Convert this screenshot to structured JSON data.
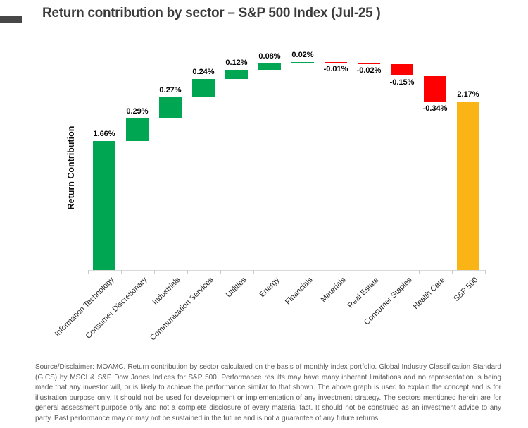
{
  "slide": {
    "title": "Return contribution by sector – S&P 500 Index (Jul-25 )"
  },
  "chart_data": {
    "type": "waterfall",
    "title": "Return contribution by sector – S&P 500 Index (Jul-25 )",
    "ylabel": "Return Contribution",
    "xlabel": "",
    "ylim": [
      0,
      2.9
    ],
    "grid": false,
    "legend": "none",
    "categories": [
      "Information Technology",
      "Consumer Discretionary",
      "Industrials",
      "Communication Services",
      "Utilities",
      "Energy",
      "Financials",
      "Materials",
      "Real Estate",
      "Consumer Staples",
      "Health Care",
      "S&P 500"
    ],
    "values": [
      1.66,
      0.29,
      0.27,
      0.24,
      0.12,
      0.08,
      0.02,
      -0.01,
      -0.02,
      -0.15,
      -0.34,
      2.17
    ],
    "value_labels": [
      "1.66%",
      "0.29%",
      "0.27%",
      "0.24%",
      "0.12%",
      "0.08%",
      "0.02%",
      "-0.01%",
      "-0.02%",
      "-0.15%",
      "-0.34%",
      "2.17%"
    ],
    "bar_types": [
      "delta",
      "delta",
      "delta",
      "delta",
      "delta",
      "delta",
      "delta",
      "delta",
      "delta",
      "delta",
      "delta",
      "total"
    ],
    "colors": {
      "positive": "#00A651",
      "negative": "#FF0000",
      "total": "#FBB416",
      "axis": "#D9D9D9",
      "title": "#3B3B3B",
      "value_label": "#000000",
      "disclaimer": "#595959"
    }
  },
  "disclaimer": {
    "text": "Source/Disclaimer: MOAMC. Return contribution by sector calculated on the basis of monthly index portfolio. Global Industry Classification Standard (GICS) by MSCI & S&P Dow Jones Indices for S&P 500. Performance results may have many inherent limitations and no representation is being made that any investor will, or is likely to achieve the performance similar to that shown. The above graph is used to explain the concept and is for illustration purpose only. It should not be used for development or implementation of any investment strategy. The sectors mentioned herein are for general assessment purpose only and not a complete disclosure of every material fact. It should not be construed as an investment advice to any party. Past performance may or may not be sustained in the future and is not a guarantee of any future returns."
  }
}
